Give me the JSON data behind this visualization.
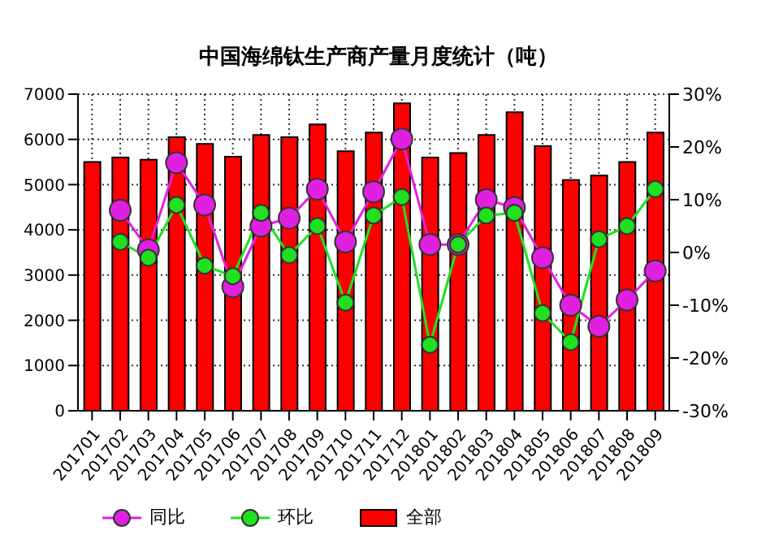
{
  "chart_data": {
    "type": "bar",
    "title": "中国海绵钛生产商产量月度统计（吨）",
    "categories": [
      "201701",
      "201702",
      "201703",
      "201704",
      "201705",
      "201706",
      "201707",
      "201708",
      "201709",
      "201710",
      "201711",
      "201712",
      "201801",
      "201802",
      "201803",
      "201804",
      "201805",
      "201806",
      "201807",
      "201808",
      "201809"
    ],
    "series": [
      {
        "name": "同比",
        "type": "line",
        "axis": "y2",
        "color": "#e020e0",
        "values": [
          null,
          8,
          0.5,
          17,
          9,
          -6.5,
          5,
          6.5,
          12,
          2,
          11.5,
          21.5,
          1.5,
          1.5,
          10,
          8.5,
          -1,
          -10,
          -14,
          -9,
          -3.5
        ]
      },
      {
        "name": "环比",
        "type": "line",
        "axis": "y2",
        "color": "#20e020",
        "values": [
          null,
          2,
          -1,
          9,
          -2.5,
          -4.5,
          7.5,
          -0.5,
          5,
          -9.5,
          7,
          10.5,
          -17.5,
          1.5,
          7,
          7.5,
          -11.5,
          -17,
          2.5,
          5,
          12
        ]
      },
      {
        "name": "全部",
        "color": "#ff0000",
        "values": [
          5500,
          5600,
          5550,
          6050,
          5900,
          5620,
          6100,
          6050,
          6330,
          5740,
          6150,
          6800,
          5600,
          5700,
          6100,
          6600,
          5850,
          5100,
          5200,
          5500,
          6150
        ]
      }
    ],
    "ylim": [
      0,
      7000
    ],
    "yticks": [
      0,
      1000,
      2000,
      3000,
      4000,
      5000,
      6000,
      7000
    ],
    "y2lim": [
      -30,
      30
    ],
    "y2ticks": [
      {
        "value": -30,
        "label": "-30%"
      },
      {
        "value": -20,
        "label": "-20%"
      },
      {
        "value": -10,
        "label": "-10%"
      },
      {
        "value": 0,
        "label": "0%"
      },
      {
        "value": 10,
        "label": "10%"
      },
      {
        "value": 20,
        "label": "20%"
      },
      {
        "value": 30,
        "label": "30%"
      }
    ],
    "grid": true,
    "legend": "bottom",
    "marker": "circle"
  }
}
